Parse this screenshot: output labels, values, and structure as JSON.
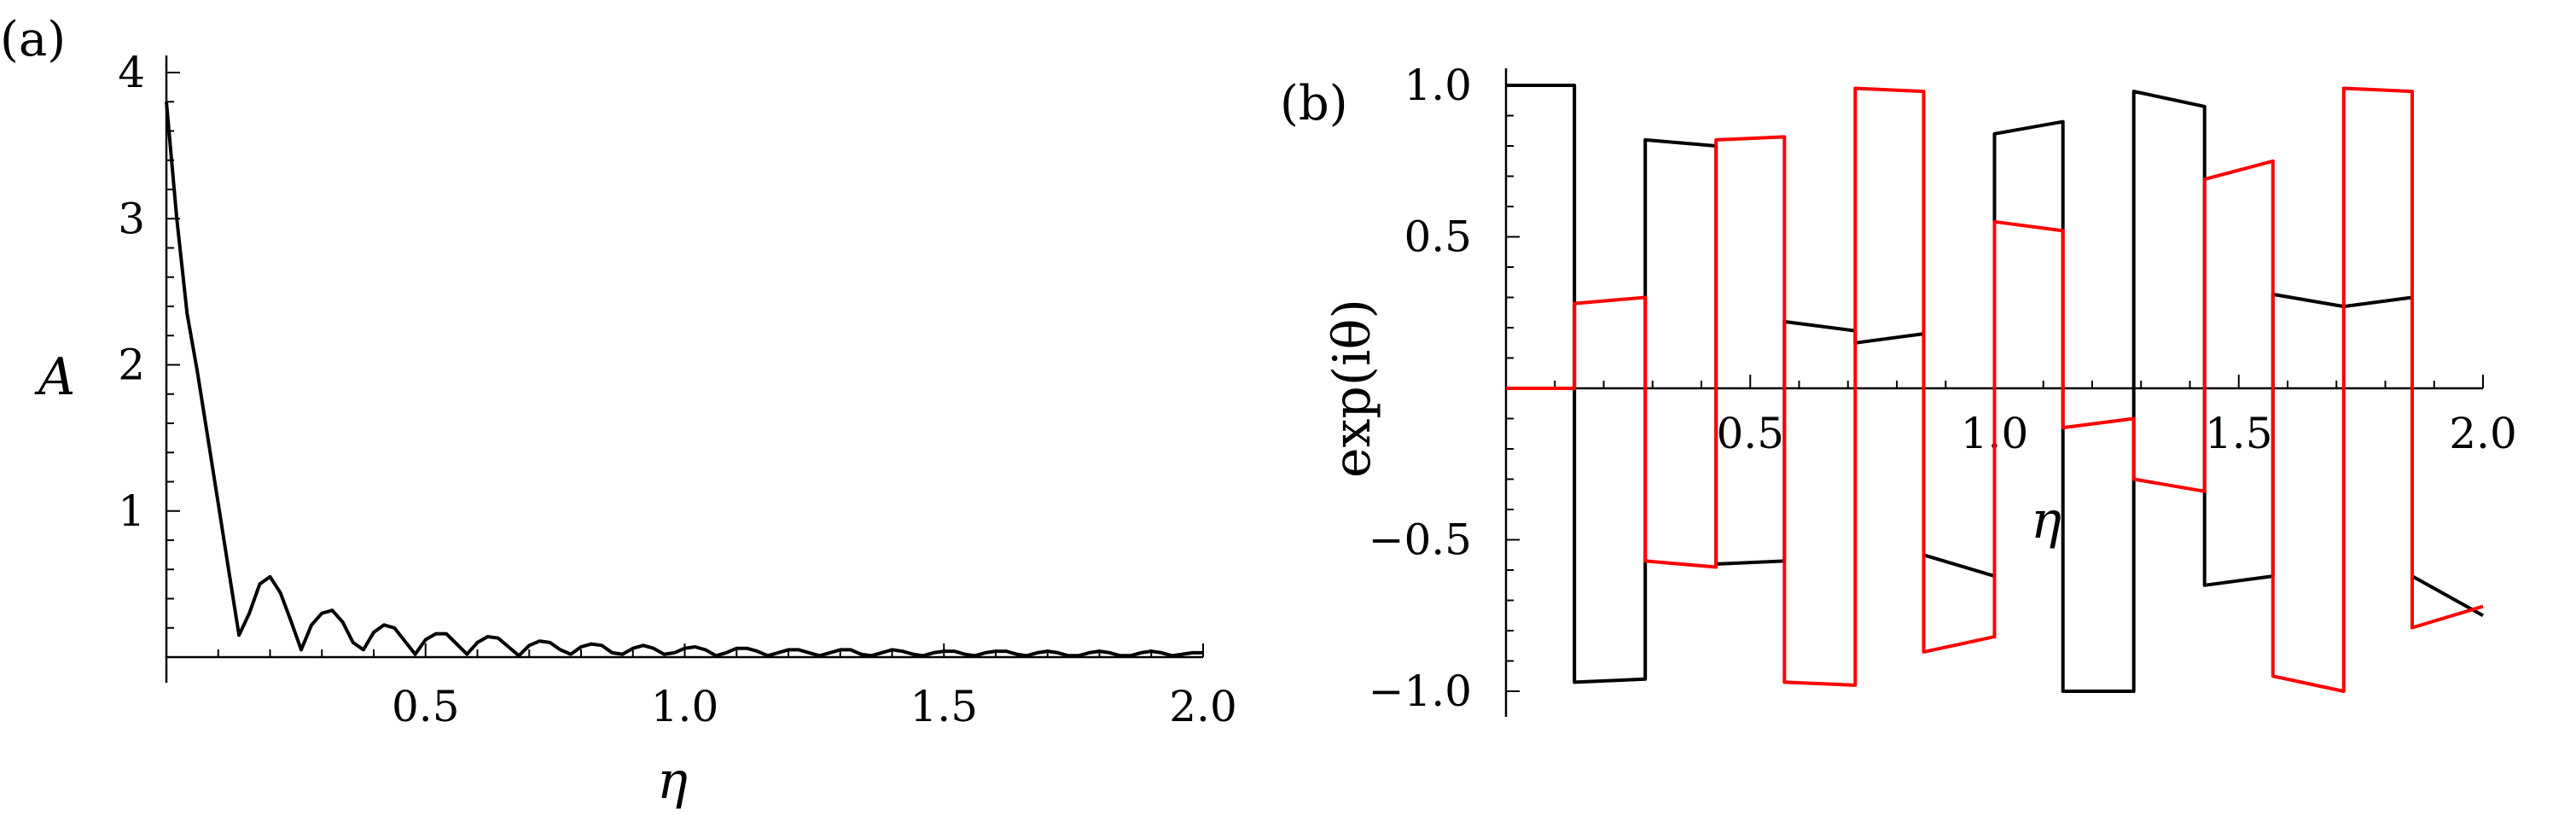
{
  "chart_data": [
    {
      "panel_label": "(a)",
      "type": "line",
      "xlabel": "η",
      "ylabel": "A",
      "xlim": [
        0,
        2.0
      ],
      "ylim": [
        0,
        4
      ],
      "x_ticks": [
        0.5,
        1.0,
        1.5,
        2.0
      ],
      "x_tick_labels": [
        "0.5",
        "1.0",
        "1.5",
        "2.0"
      ],
      "y_ticks": [
        1,
        2,
        3,
        4
      ],
      "y_tick_labels": [
        "1",
        "2",
        "3",
        "4"
      ],
      "series": [
        {
          "color": "#000000",
          "x": [
            0.0,
            0.02,
            0.04,
            0.06,
            0.08,
            0.1,
            0.12,
            0.14,
            0.16,
            0.18,
            0.2,
            0.22,
            0.24,
            0.26,
            0.28,
            0.3,
            0.32,
            0.34,
            0.36,
            0.38,
            0.4,
            0.42,
            0.44,
            0.46,
            0.48,
            0.5,
            0.52,
            0.54,
            0.56,
            0.58,
            0.6,
            0.62,
            0.64,
            0.66,
            0.68,
            0.7,
            0.72,
            0.74,
            0.76,
            0.78,
            0.8,
            0.82,
            0.84,
            0.86,
            0.88,
            0.9,
            0.92,
            0.94,
            0.96,
            0.98,
            1.0,
            1.02,
            1.04,
            1.06,
            1.08,
            1.1,
            1.12,
            1.14,
            1.16,
            1.18,
            1.2,
            1.22,
            1.24,
            1.26,
            1.28,
            1.3,
            1.32,
            1.34,
            1.36,
            1.38,
            1.4,
            1.42,
            1.44,
            1.46,
            1.48,
            1.5,
            1.52,
            1.54,
            1.56,
            1.58,
            1.6,
            1.62,
            1.64,
            1.66,
            1.68,
            1.7,
            1.72,
            1.74,
            1.76,
            1.78,
            1.8,
            1.82,
            1.84,
            1.86,
            1.88,
            1.9,
            1.92,
            1.94,
            1.96,
            1.98,
            2.0
          ],
          "values": [
            3.8,
            3.0,
            2.35,
            1.95,
            1.5,
            1.05,
            0.6,
            0.15,
            0.3,
            0.5,
            0.55,
            0.44,
            0.25,
            0.05,
            0.22,
            0.3,
            0.32,
            0.24,
            0.1,
            0.05,
            0.17,
            0.22,
            0.2,
            0.11,
            0.02,
            0.12,
            0.16,
            0.16,
            0.09,
            0.02,
            0.1,
            0.14,
            0.13,
            0.07,
            0.01,
            0.08,
            0.11,
            0.1,
            0.05,
            0.02,
            0.07,
            0.09,
            0.08,
            0.03,
            0.02,
            0.06,
            0.08,
            0.06,
            0.02,
            0.03,
            0.06,
            0.07,
            0.05,
            0.01,
            0.03,
            0.06,
            0.06,
            0.04,
            0.01,
            0.03,
            0.05,
            0.05,
            0.03,
            0.01,
            0.03,
            0.05,
            0.05,
            0.02,
            0.01,
            0.03,
            0.05,
            0.04,
            0.02,
            0.01,
            0.03,
            0.04,
            0.04,
            0.02,
            0.01,
            0.03,
            0.04,
            0.04,
            0.02,
            0.01,
            0.03,
            0.04,
            0.03,
            0.01,
            0.01,
            0.03,
            0.04,
            0.03,
            0.01,
            0.01,
            0.03,
            0.04,
            0.03,
            0.01,
            0.02,
            0.03,
            0.03
          ]
        }
      ]
    },
    {
      "panel_label": "(b)",
      "type": "line",
      "xlabel": "η",
      "ylabel": "exp(iθ)",
      "xlim": [
        0,
        2.0
      ],
      "ylim": [
        -1.0,
        1.0
      ],
      "x_ticks": [
        0.5,
        1.0,
        1.5,
        2.0
      ],
      "x_tick_labels": [
        "0.5",
        "1.0",
        "1.5",
        "2.0"
      ],
      "y_ticks": [
        1.0,
        0.5,
        -0.5,
        -1.0
      ],
      "y_tick_labels": [
        "1.0",
        "0.5",
        "−0.5",
        "−1.0"
      ],
      "series": [
        {
          "color": "#000000",
          "x": [
            0.0,
            0.14,
            0.14,
            0.285,
            0.285,
            0.43,
            0.43,
            0.57,
            0.57,
            0.715,
            0.715,
            0.855,
            0.855,
            1.0,
            1.0,
            1.14,
            1.14,
            1.285,
            1.285,
            1.43,
            1.43,
            1.57,
            1.57,
            1.715,
            1.715,
            1.855,
            1.855,
            2.0
          ],
          "values": [
            1.0,
            1.0,
            -0.97,
            -0.96,
            0.82,
            0.8,
            -0.58,
            -0.57,
            0.22,
            0.19,
            0.15,
            0.18,
            -0.55,
            -0.62,
            0.84,
            0.88,
            -1.0,
            -1.0,
            0.98,
            0.93,
            -0.65,
            -0.62,
            0.31,
            0.27,
            0.27,
            0.3,
            -0.62,
            -0.75
          ]
        },
        {
          "color": "#ff0000",
          "x": [
            0.0,
            0.14,
            0.14,
            0.285,
            0.285,
            0.43,
            0.43,
            0.57,
            0.57,
            0.715,
            0.715,
            0.855,
            0.855,
            1.0,
            1.0,
            1.14,
            1.14,
            1.285,
            1.285,
            1.43,
            1.43,
            1.57,
            1.57,
            1.715,
            1.715,
            1.855,
            1.855,
            2.0
          ],
          "values": [
            0.0,
            0.0,
            0.28,
            0.3,
            -0.57,
            -0.59,
            0.82,
            0.83,
            -0.97,
            -0.98,
            0.99,
            0.98,
            -0.87,
            -0.82,
            0.55,
            0.52,
            -0.13,
            -0.1,
            -0.3,
            -0.34,
            0.69,
            0.75,
            -0.95,
            -1.0,
            0.99,
            0.98,
            -0.79,
            -0.72
          ]
        }
      ]
    }
  ]
}
